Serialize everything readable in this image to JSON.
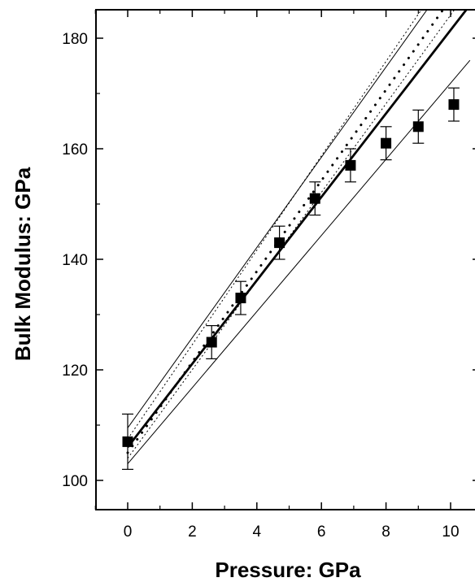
{
  "chart_data": {
    "type": "scatter",
    "title": "",
    "xlabel": "Pressure: GPa",
    "ylabel": "Bulk Modulus: GPa",
    "xlim": [
      -1,
      10.6
    ],
    "ylim": [
      95,
      185
    ],
    "x_ticks": [
      0,
      2,
      4,
      6,
      8,
      10
    ],
    "x_tick_labels": [
      "0",
      "2",
      "4",
      "6",
      "8",
      "10"
    ],
    "y_ticks": [
      100,
      120,
      140,
      160,
      180
    ],
    "y_tick_labels": [
      "100",
      "120",
      "140",
      "160",
      "180"
    ],
    "grid": false,
    "series": [
      {
        "type": "scatter",
        "marker": "square",
        "x": [
          0,
          2.6,
          3.5,
          4.7,
          5.8,
          6.9,
          8.0,
          9.0,
          10.1
        ],
        "y": [
          107,
          125,
          133,
          143,
          151,
          157,
          161,
          164,
          168
        ],
        "err": [
          5,
          3,
          3,
          3,
          3,
          3,
          3,
          3,
          3
        ]
      },
      {
        "type": "line",
        "style": "thick",
        "x": [
          0,
          10.6
        ],
        "y": [
          106,
          186
        ]
      },
      {
        "type": "line",
        "style": "thin",
        "x": [
          0,
          10.6
        ],
        "y": [
          103,
          176
        ]
      },
      {
        "type": "line",
        "style": "thin",
        "x": [
          0,
          10.6
        ],
        "y": [
          109.5,
          196
        ]
      },
      {
        "type": "line",
        "style": "dotted",
        "x": [
          0,
          10.6
        ],
        "y": [
          105,
          192
        ]
      },
      {
        "type": "line",
        "style": "fine-dotted",
        "x": [
          0,
          10.6
        ],
        "y": [
          104,
          189
        ]
      },
      {
        "type": "line",
        "style": "fine-dotted",
        "x": [
          0,
          10.6
        ],
        "y": [
          107.5,
          198
        ]
      }
    ]
  }
}
